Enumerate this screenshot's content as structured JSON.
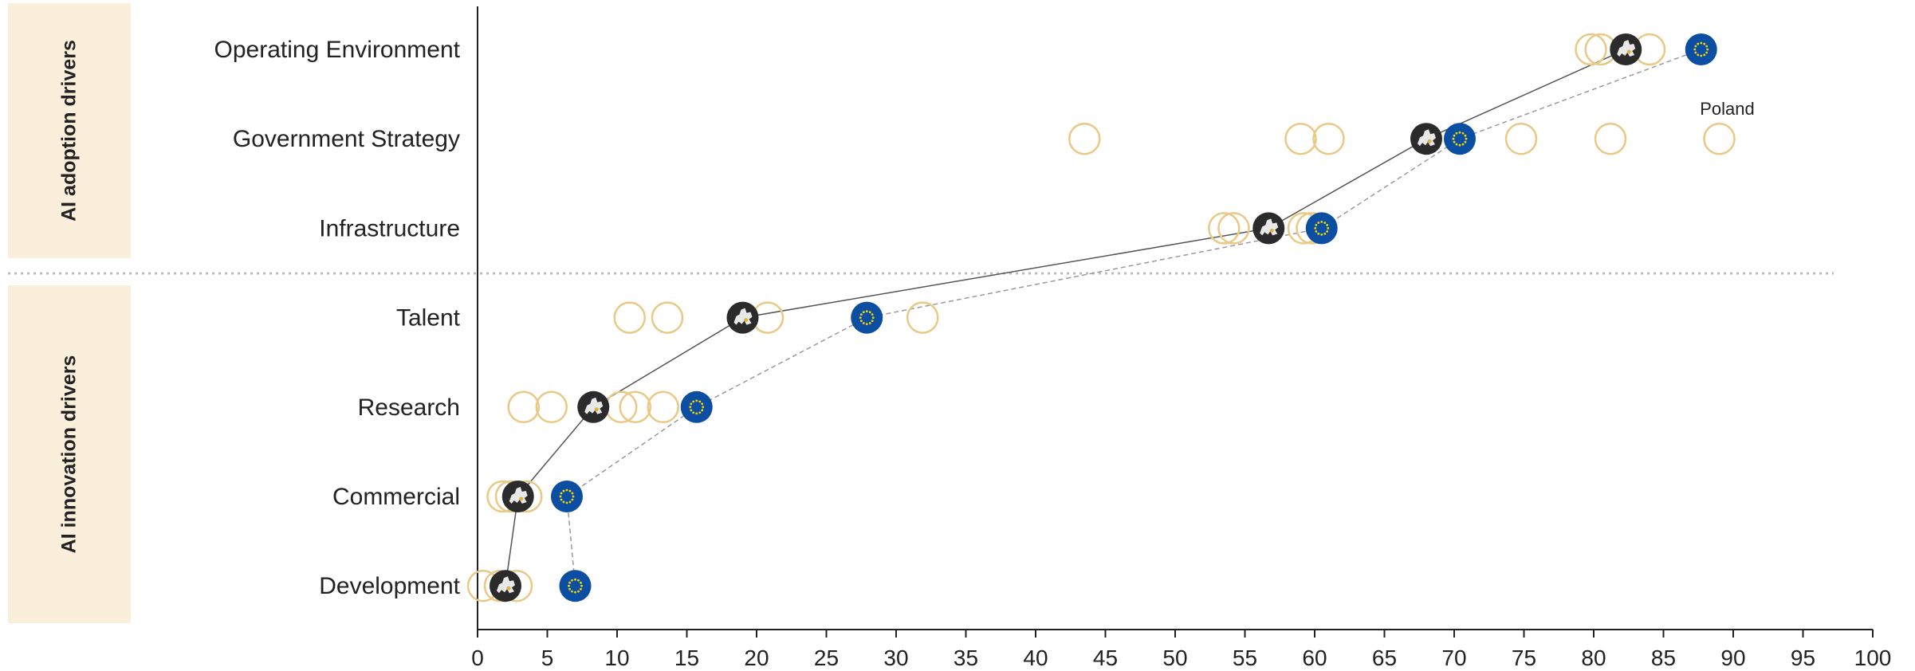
{
  "groups": {
    "adoption": "AI adoption drivers",
    "innovation": "AI innovation drivers"
  },
  "colors": {
    "country_outline": "#EAC987",
    "eu_fill": "#0B4EA2",
    "eu_stars": "#F5D400",
    "eu_aggregate_fill": "#2B2B2B",
    "eu_aggregate_map": "#E8E8E8",
    "group_band": "#FAEFDB",
    "separator": "#BDBDBD"
  },
  "chart_data": {
    "type": "scatter",
    "categories": [
      "Operating Environment",
      "Government Strategy",
      "Infrastructure",
      "Talent",
      "Research",
      "Commercial",
      "Development"
    ],
    "xlim": [
      0,
      100
    ],
    "xticks": [
      0,
      5,
      10,
      15,
      20,
      25,
      30,
      35,
      40,
      45,
      50,
      55,
      60,
      65,
      70,
      75,
      80,
      85,
      90,
      95,
      100
    ],
    "grid": false,
    "annotation": {
      "text": "Poland",
      "category": "Government Strategy",
      "x": 89
    },
    "series": [
      {
        "marker": "hollow-circle",
        "points": [
          {
            "category": "Operating Environment",
            "values": [
              79.8,
              80.5,
              84.0
            ]
          },
          {
            "category": "Government Strategy",
            "values": [
              43.5,
              59.0,
              61.0,
              74.8,
              81.2,
              89.0
            ]
          },
          {
            "category": "Infrastructure",
            "values": [
              53.5,
              54.2,
              59.2,
              59.8
            ]
          },
          {
            "category": "Talent",
            "values": [
              10.9,
              13.6,
              20.8,
              31.9
            ]
          },
          {
            "category": "Research",
            "values": [
              3.3,
              5.3,
              10.3,
              11.3,
              13.3
            ]
          },
          {
            "category": "Commercial",
            "values": [
              1.8,
              2.4,
              3.5
            ]
          },
          {
            "category": "Development",
            "values": [
              0.4,
              1.6,
              2.8
            ]
          }
        ]
      },
      {
        "marker": "eu-flag-circle",
        "connector": "dashed",
        "points": [
          {
            "category": "Operating Environment",
            "value": 87.7
          },
          {
            "category": "Government Strategy",
            "value": 70.4
          },
          {
            "category": "Infrastructure",
            "value": 60.5
          },
          {
            "category": "Talent",
            "value": 27.9
          },
          {
            "category": "Research",
            "value": 15.7
          },
          {
            "category": "Commercial",
            "value": 6.4
          },
          {
            "category": "Development",
            "value": 7.0
          }
        ]
      },
      {
        "marker": "eu-map-circle",
        "connector": "solid",
        "points": [
          {
            "category": "Operating Environment",
            "value": 82.3
          },
          {
            "category": "Government Strategy",
            "value": 68.0
          },
          {
            "category": "Infrastructure",
            "value": 56.7
          },
          {
            "category": "Talent",
            "value": 19.0
          },
          {
            "category": "Research",
            "value": 8.3
          },
          {
            "category": "Commercial",
            "value": 2.9
          },
          {
            "category": "Development",
            "value": 2.0
          }
        ]
      }
    ]
  }
}
